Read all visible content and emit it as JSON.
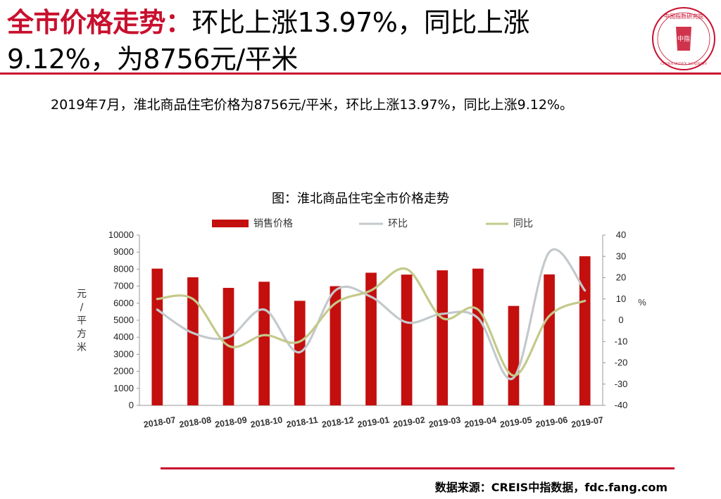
{
  "header": {
    "title_accent": "全市价格走势：",
    "title_line1_rest": "环比上涨13.97%，同比上涨",
    "title_line2": "9.12%，为8756元/平米"
  },
  "summary": "2019年7月，淮北商品住宅价格为8756元/平米，环比上涨13.97%，同比上涨9.12%。",
  "logo": {
    "icon": "china-index-academy-seal",
    "top_text": "中国指数研究院",
    "center_text": "中指",
    "bottom_text": "CHINA INDEX ACADEMY"
  },
  "source": "数据来源：CREIS中指数据，fdc.fang.com",
  "colors": {
    "accent": "#c8102e",
    "bar": "#c40f0f",
    "mom": "#c3c9cc",
    "yoy": "#c4c98a"
  },
  "chart_data": {
    "type": "bar",
    "title": "图：淮北商品住宅全市价格走势",
    "categories": [
      "2018-07",
      "2018-08",
      "2018-09",
      "2018-10",
      "2018-11",
      "2018-12",
      "2019-01",
      "2019-02",
      "2019-03",
      "2019-04",
      "2019-05",
      "2019-06",
      "2019-07"
    ],
    "ylabel": "元/平方米",
    "y2label": "%",
    "ylim": [
      0,
      10000
    ],
    "y_ticks": [
      "0",
      "1000",
      "2000",
      "3000",
      "4000",
      "5000",
      "6000",
      "7000",
      "8000",
      "9000",
      "10000"
    ],
    "y2lim": [
      -40,
      40
    ],
    "y2_ticks": [
      "-40",
      "-30",
      "-20",
      "-10",
      "0",
      "10",
      "20",
      "30",
      "40"
    ],
    "legend_position": "top",
    "grid": false,
    "series": [
      {
        "name": "销售价格",
        "type": "bar",
        "axis": "left",
        "values": [
          8030,
          7520,
          6900,
          7260,
          6140,
          7000,
          7790,
          7680,
          7930,
          8030,
          5840,
          7690,
          8756
        ]
      },
      {
        "name": "环比",
        "type": "line",
        "axis": "right",
        "values": [
          5,
          -6,
          -8,
          5,
          -15,
          14,
          11,
          -1,
          3,
          1,
          -27,
          32,
          13.97
        ]
      },
      {
        "name": "同比",
        "type": "line",
        "axis": "right",
        "values": [
          10,
          10,
          -12,
          -7,
          -10,
          8,
          14,
          24,
          1,
          5,
          -26,
          2,
          9.12
        ]
      }
    ]
  }
}
